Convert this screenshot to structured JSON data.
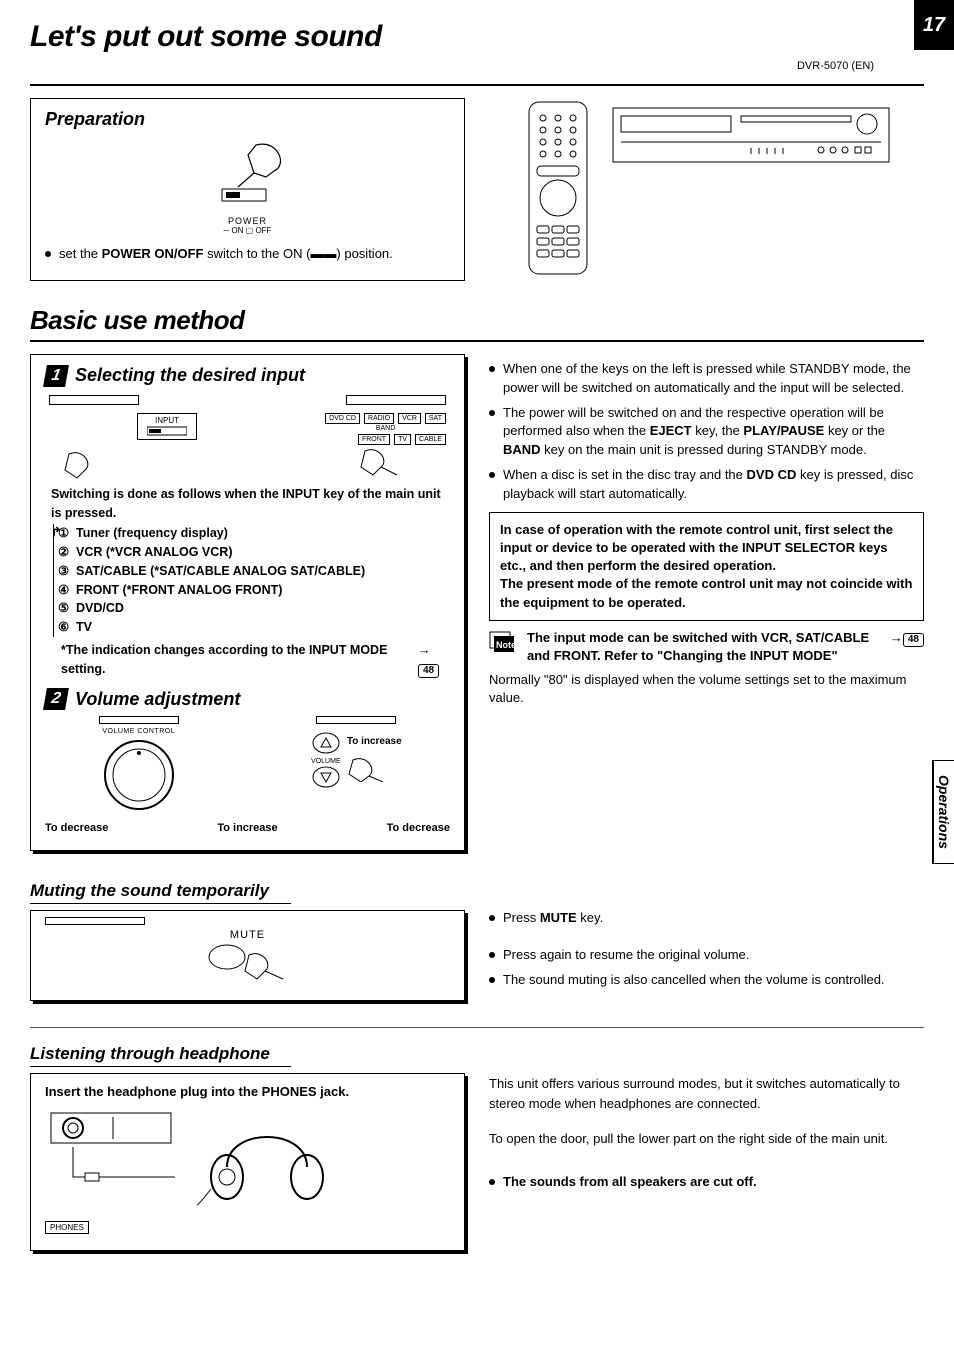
{
  "page": {
    "main_title": "Let's put out some sound",
    "page_number": "17",
    "doc_id": "DVR-5070 (EN)",
    "side_tab": "Operations",
    "section2_title": "Basic use method"
  },
  "prep": {
    "title": "Preparation",
    "power_label": "POWER",
    "power_sub": "─ ON  ▢ OFF",
    "text_pre": "set the ",
    "text_bold": "POWER ON/OFF",
    "text_post": " switch to the ON (▬▬) position."
  },
  "step1": {
    "title": "Selecting the desired input",
    "input_label": "INPUT",
    "buttons_row1": [
      "DVD CD",
      "RADIO",
      "VCR",
      "SAT"
    ],
    "band_label": "BAND",
    "buttons_row2": [
      "FRONT",
      "TV",
      "CABLE"
    ],
    "lead": "Switching is done as follows when the INPUT key of the main unit is pressed.",
    "items": [
      {
        "n": "①",
        "t": "Tuner (frequency display)"
      },
      {
        "n": "②",
        "t": "VCR (*VCR   ANALOG   VCR)"
      },
      {
        "n": "③",
        "t": "SAT/CABLE (*SAT/CABLE   ANALOG   SAT/CABLE)"
      },
      {
        "n": "④",
        "t": "FRONT (*FRONT   ANALOG   FRONT)"
      },
      {
        "n": "⑤",
        "t": "DVD/CD"
      },
      {
        "n": "⑥",
        "t": "TV"
      }
    ],
    "footnote": "*The indication changes according to the INPUT MODE setting.",
    "ref": "48"
  },
  "step2": {
    "title": "Volume adjustment",
    "vc_label": "VOLUME CONTROL",
    "vol_label": "VOLUME",
    "to_increase": "To increase",
    "to_decrease": "To decrease"
  },
  "right": {
    "b1_parts": [
      "When one of the keys on the left is pressed while STANDBY mode, the power will be switched on automatically and the input will be selected."
    ],
    "b2_pre": "The power will be switched on and the respective operation will be performed also when the ",
    "b2_e": "EJECT",
    "b2_mid1": " key, the ",
    "b2_p": "PLAY/PAUSE",
    "b2_mid2": " key or the ",
    "b2_b": "BAND",
    "b2_post": " key on the main unit is pressed during STANDBY mode.",
    "b3_pre": "When a disc is set in the disc tray and the ",
    "b3_d": "DVD CD",
    "b3_post": " key is pressed, disc playback will start automatically.",
    "note_box": "In case of operation with the remote control unit, first select the input or device to be operated with the INPUT SELECTOR keys etc., and then perform the desired operation.\nThe present mode of the remote control unit may not coincide with the equipment to be operated.",
    "note2": "The input mode can be switched with VCR, SAT/CABLE and FRONT. Refer to \"Changing the INPUT MODE\"",
    "note2_ref": "48",
    "vol_note": "Normally \"80\" is displayed when the volume settings set to the maximum value."
  },
  "mute": {
    "title": "Muting the sound temporarily",
    "btn": "MUTE",
    "r1_pre": "Press ",
    "r1_b": "MUTE",
    "r1_post": " key.",
    "r2": "Press again to resume the original volume.",
    "r3": "The sound muting is also cancelled when the volume is controlled."
  },
  "hp": {
    "title": "Listening through headphone",
    "instruction": "Insert the headphone plug into the PHONES jack.",
    "phones": "PHONES",
    "r1": "This unit offers various surround modes, but it switches automatically to stereo mode when headphones are connected.",
    "r2": "To open the door, pull the lower part on the right side of the main unit.",
    "r3": "The sounds from all speakers are cut off."
  }
}
